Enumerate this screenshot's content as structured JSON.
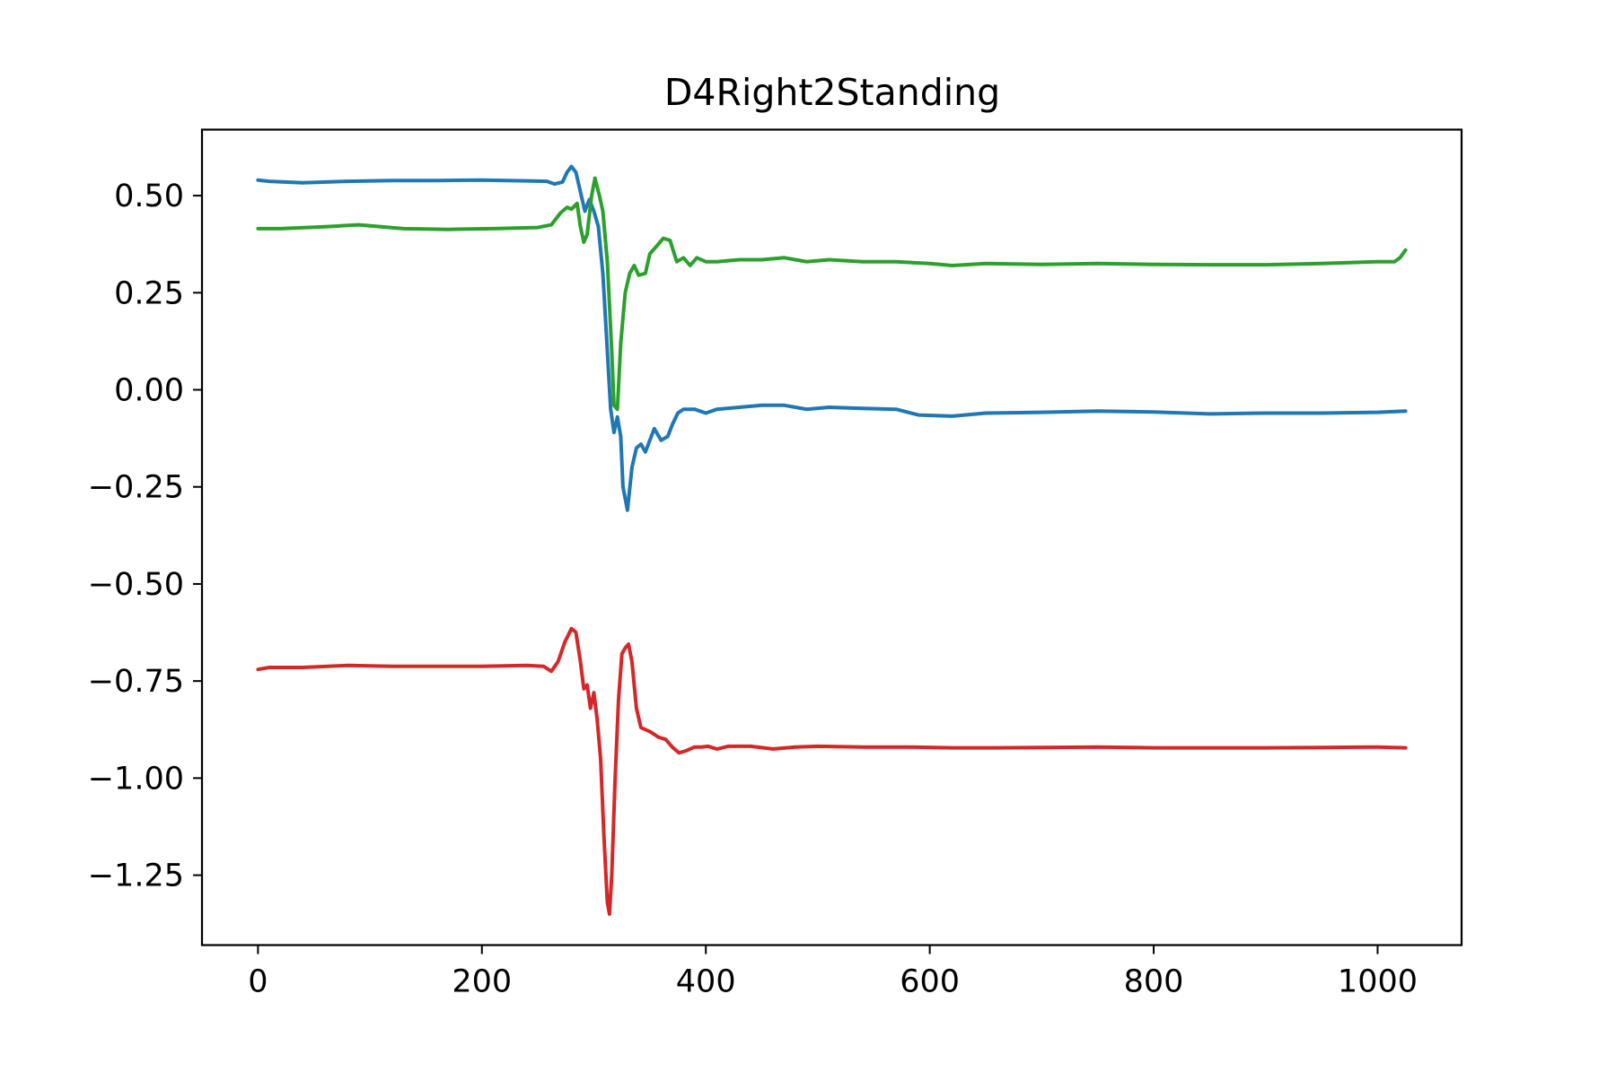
{
  "chart_data": {
    "type": "line",
    "title": "D4Right2Standing",
    "xlabel": "",
    "ylabel": "",
    "xlim": [
      -50,
      1075
    ],
    "ylim": [
      -1.43,
      0.67
    ],
    "grid": false,
    "legend": "none",
    "x_ticks": [
      {
        "value": 0,
        "label": "0"
      },
      {
        "value": 200,
        "label": "200"
      },
      {
        "value": 400,
        "label": "400"
      },
      {
        "value": 600,
        "label": "600"
      },
      {
        "value": 800,
        "label": "800"
      },
      {
        "value": 1000,
        "label": "1000"
      }
    ],
    "y_ticks": [
      {
        "value": 0.5,
        "label": "0.50"
      },
      {
        "value": 0.25,
        "label": "0.25"
      },
      {
        "value": 0.0,
        "label": "0.00"
      },
      {
        "value": -0.25,
        "label": "−0.25"
      },
      {
        "value": -0.5,
        "label": "−0.50"
      },
      {
        "value": -0.75,
        "label": "−0.75"
      },
      {
        "value": -1.0,
        "label": "−1.00"
      },
      {
        "value": -1.25,
        "label": "−1.25"
      }
    ],
    "series": [
      {
        "color": "#1f77b4",
        "points": [
          [
            0,
            0.54
          ],
          [
            10,
            0.537
          ],
          [
            40,
            0.533
          ],
          [
            80,
            0.537
          ],
          [
            120,
            0.539
          ],
          [
            160,
            0.539
          ],
          [
            200,
            0.54
          ],
          [
            240,
            0.538
          ],
          [
            258,
            0.537
          ],
          [
            265,
            0.53
          ],
          [
            272,
            0.535
          ],
          [
            276,
            0.56
          ],
          [
            280,
            0.575
          ],
          [
            284,
            0.56
          ],
          [
            288,
            0.51
          ],
          [
            292,
            0.46
          ],
          [
            296,
            0.49
          ],
          [
            300,
            0.46
          ],
          [
            304,
            0.42
          ],
          [
            308,
            0.3
          ],
          [
            312,
            0.1
          ],
          [
            315,
            -0.05
          ],
          [
            318,
            -0.11
          ],
          [
            321,
            -0.07
          ],
          [
            324,
            -0.12
          ],
          [
            326,
            -0.25
          ],
          [
            330,
            -0.31
          ],
          [
            334,
            -0.2
          ],
          [
            338,
            -0.15
          ],
          [
            342,
            -0.14
          ],
          [
            346,
            -0.16
          ],
          [
            350,
            -0.13
          ],
          [
            354,
            -0.1
          ],
          [
            360,
            -0.13
          ],
          [
            366,
            -0.12
          ],
          [
            370,
            -0.09
          ],
          [
            375,
            -0.06
          ],
          [
            380,
            -0.05
          ],
          [
            390,
            -0.05
          ],
          [
            400,
            -0.06
          ],
          [
            410,
            -0.05
          ],
          [
            430,
            -0.045
          ],
          [
            450,
            -0.04
          ],
          [
            470,
            -0.04
          ],
          [
            490,
            -0.05
          ],
          [
            510,
            -0.045
          ],
          [
            540,
            -0.048
          ],
          [
            570,
            -0.05
          ],
          [
            590,
            -0.065
          ],
          [
            620,
            -0.068
          ],
          [
            650,
            -0.06
          ],
          [
            700,
            -0.058
          ],
          [
            750,
            -0.055
          ],
          [
            800,
            -0.057
          ],
          [
            850,
            -0.062
          ],
          [
            900,
            -0.06
          ],
          [
            950,
            -0.06
          ],
          [
            1000,
            -0.058
          ],
          [
            1025,
            -0.055
          ]
        ]
      },
      {
        "color": "#2ca02c",
        "points": [
          [
            0,
            0.415
          ],
          [
            20,
            0.415
          ],
          [
            60,
            0.42
          ],
          [
            90,
            0.425
          ],
          [
            130,
            0.415
          ],
          [
            170,
            0.413
          ],
          [
            210,
            0.415
          ],
          [
            250,
            0.418
          ],
          [
            262,
            0.425
          ],
          [
            270,
            0.455
          ],
          [
            276,
            0.47
          ],
          [
            280,
            0.465
          ],
          [
            285,
            0.48
          ],
          [
            288,
            0.42
          ],
          [
            291,
            0.38
          ],
          [
            294,
            0.4
          ],
          [
            298,
            0.5
          ],
          [
            301,
            0.545
          ],
          [
            305,
            0.5
          ],
          [
            308,
            0.46
          ],
          [
            312,
            0.33
          ],
          [
            316,
            0.1
          ],
          [
            318,
            -0.04
          ],
          [
            321,
            -0.05
          ],
          [
            324,
            0.12
          ],
          [
            328,
            0.25
          ],
          [
            332,
            0.3
          ],
          [
            336,
            0.32
          ],
          [
            340,
            0.295
          ],
          [
            346,
            0.3
          ],
          [
            350,
            0.35
          ],
          [
            356,
            0.37
          ],
          [
            362,
            0.39
          ],
          [
            368,
            0.385
          ],
          [
            374,
            0.33
          ],
          [
            380,
            0.34
          ],
          [
            386,
            0.32
          ],
          [
            392,
            0.34
          ],
          [
            400,
            0.33
          ],
          [
            410,
            0.33
          ],
          [
            430,
            0.335
          ],
          [
            450,
            0.335
          ],
          [
            470,
            0.34
          ],
          [
            490,
            0.33
          ],
          [
            510,
            0.335
          ],
          [
            540,
            0.33
          ],
          [
            570,
            0.33
          ],
          [
            600,
            0.325
          ],
          [
            620,
            0.32
          ],
          [
            650,
            0.325
          ],
          [
            700,
            0.323
          ],
          [
            750,
            0.325
          ],
          [
            800,
            0.323
          ],
          [
            850,
            0.322
          ],
          [
            900,
            0.322
          ],
          [
            950,
            0.325
          ],
          [
            1000,
            0.33
          ],
          [
            1015,
            0.33
          ],
          [
            1020,
            0.34
          ],
          [
            1025,
            0.36
          ]
        ]
      },
      {
        "color": "#d62728",
        "points": [
          [
            0,
            -0.72
          ],
          [
            10,
            -0.715
          ],
          [
            40,
            -0.715
          ],
          [
            80,
            -0.71
          ],
          [
            120,
            -0.712
          ],
          [
            160,
            -0.712
          ],
          [
            200,
            -0.712
          ],
          [
            240,
            -0.71
          ],
          [
            255,
            -0.712
          ],
          [
            262,
            -0.725
          ],
          [
            268,
            -0.7
          ],
          [
            274,
            -0.65
          ],
          [
            280,
            -0.615
          ],
          [
            284,
            -0.625
          ],
          [
            288,
            -0.7
          ],
          [
            291,
            -0.77
          ],
          [
            294,
            -0.76
          ],
          [
            297,
            -0.82
          ],
          [
            300,
            -0.78
          ],
          [
            303,
            -0.85
          ],
          [
            306,
            -0.95
          ],
          [
            309,
            -1.15
          ],
          [
            312,
            -1.32
          ],
          [
            314,
            -1.35
          ],
          [
            316,
            -1.25
          ],
          [
            319,
            -1.0
          ],
          [
            322,
            -0.8
          ],
          [
            325,
            -0.68
          ],
          [
            328,
            -0.665
          ],
          [
            331,
            -0.655
          ],
          [
            334,
            -0.7
          ],
          [
            338,
            -0.82
          ],
          [
            342,
            -0.87
          ],
          [
            350,
            -0.88
          ],
          [
            358,
            -0.895
          ],
          [
            364,
            -0.9
          ],
          [
            370,
            -0.92
          ],
          [
            376,
            -0.935
          ],
          [
            382,
            -0.93
          ],
          [
            390,
            -0.92
          ],
          [
            396,
            -0.92
          ],
          [
            402,
            -0.918
          ],
          [
            410,
            -0.925
          ],
          [
            420,
            -0.918
          ],
          [
            440,
            -0.918
          ],
          [
            460,
            -0.925
          ],
          [
            480,
            -0.92
          ],
          [
            500,
            -0.918
          ],
          [
            540,
            -0.92
          ],
          [
            580,
            -0.92
          ],
          [
            620,
            -0.922
          ],
          [
            660,
            -0.922
          ],
          [
            700,
            -0.921
          ],
          [
            750,
            -0.92
          ],
          [
            800,
            -0.922
          ],
          [
            850,
            -0.922
          ],
          [
            900,
            -0.922
          ],
          [
            950,
            -0.921
          ],
          [
            1000,
            -0.92
          ],
          [
            1025,
            -0.922
          ]
        ]
      }
    ]
  }
}
